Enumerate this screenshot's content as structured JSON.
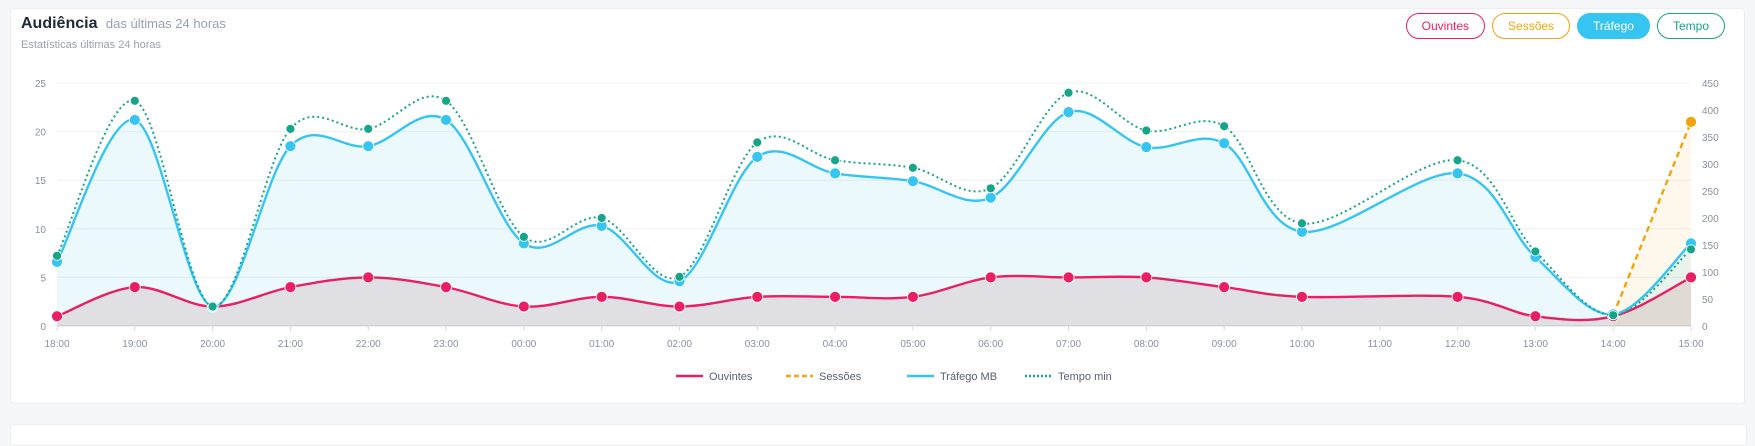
{
  "header": {
    "title": "Audiência",
    "title_suffix": "das últimas 24 horas",
    "subtitle": "Estatísticas últimas 24 horas"
  },
  "buttons": {
    "ouvintes": "Ouvintes",
    "sessoes": "Sessões",
    "trafego": "Tráfego",
    "tempo": "Tempo"
  },
  "chart_data": {
    "type": "line",
    "x": [
      "18:00",
      "19:00",
      "20:00",
      "21:00",
      "22:00",
      "23:00",
      "00:00",
      "01:00",
      "02:00",
      "03:00",
      "04:00",
      "05:00",
      "06:00",
      "07:00",
      "08:00",
      "09:00",
      "10:00",
      "11:00",
      "12:00",
      "13:00",
      "14:00",
      "15:00"
    ],
    "y_left": {
      "ticks": [
        0,
        5,
        10,
        15,
        20,
        25
      ],
      "lim": [
        0,
        25
      ]
    },
    "y_right": {
      "ticks": [
        0,
        50,
        100,
        150,
        200,
        250,
        300,
        350,
        400,
        450
      ],
      "lim": [
        0,
        450
      ]
    },
    "grid": true,
    "legend_position": "bottom",
    "series": [
      {
        "name": "Ouvintes",
        "axis": "left",
        "color": "#e91e63",
        "style": "solid",
        "values": [
          1,
          4,
          2,
          4,
          5,
          4,
          2,
          3,
          2,
          3,
          3,
          3,
          5,
          5,
          5,
          4,
          3,
          null,
          3,
          1,
          1,
          5
        ],
        "fill": "rgba(160,40,40,0.13)"
      },
      {
        "name": "Sessões",
        "axis": "right",
        "color": "#f2a40c",
        "style": "dashed",
        "values": [
          null,
          null,
          null,
          null,
          null,
          null,
          null,
          null,
          null,
          null,
          null,
          null,
          null,
          null,
          null,
          null,
          null,
          null,
          null,
          null,
          20,
          378
        ],
        "fill": "rgba(242,164,12,0.08)"
      },
      {
        "name": "Tráfego MB",
        "axis": "left",
        "color": "#36c5f0",
        "style": "solid",
        "values": [
          6.6,
          21.2,
          2,
          18.5,
          18.5,
          21.2,
          8.5,
          10.3,
          4.6,
          17.4,
          15.7,
          14.9,
          13.2,
          22,
          18.4,
          18.8,
          9.7,
          null,
          15.7,
          7.1,
          1.2,
          8.5
        ],
        "fill": "rgba(54,197,240,0.10)"
      },
      {
        "name": "Tempo min",
        "axis": "right",
        "color": "#17a589",
        "style": "dotted",
        "values": [
          130,
          417,
          36,
          365,
          365,
          417,
          165,
          200,
          91,
          340,
          307,
          293,
          255,
          432,
          362,
          370,
          190,
          null,
          307,
          138,
          20,
          142
        ],
        "fill": "none"
      }
    ]
  },
  "legend": [
    "Ouvintes",
    "Sessões",
    "Tráfego MB",
    "Tempo min"
  ]
}
